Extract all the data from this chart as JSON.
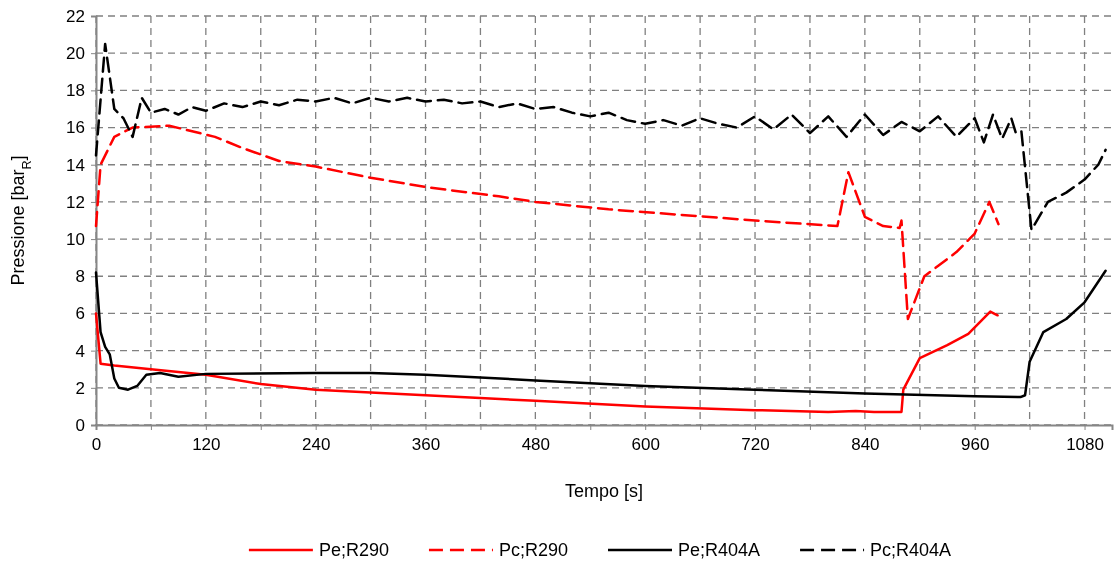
{
  "chart_data": {
    "type": "line",
    "xlabel": "Tempo [s]",
    "ylabel": "Pressione [bar$_{R}$]",
    "xlim": [
      0,
      1110
    ],
    "ylim": [
      0,
      22
    ],
    "xticks": [
      0,
      {
        "value": 60,
        "label": null
      },
      120,
      {
        "value": 180,
        "label": null
      },
      240,
      {
        "value": 300,
        "label": null
      },
      360,
      {
        "value": 420,
        "label": null
      },
      480,
      {
        "value": 540,
        "label": null
      },
      600,
      {
        "value": 660,
        "label": null
      },
      720,
      {
        "value": 780,
        "label": null
      },
      840,
      {
        "value": 900,
        "label": null
      },
      960,
      {
        "value": 1020,
        "label": null
      },
      1080
    ],
    "yticks": [
      0,
      2,
      4,
      6,
      8,
      10,
      12,
      14,
      16,
      18,
      20,
      22
    ],
    "grid": true,
    "legend": "bottom",
    "marker": "none",
    "series": [
      {
        "name": "Pe;R290",
        "color": "#ff0000",
        "line_style": "solid",
        "x": [
          0,
          5,
          20,
          60,
          120,
          180,
          240,
          360,
          480,
          600,
          720,
          800,
          830,
          850,
          880,
          882,
          900,
          930,
          953,
          977,
          985
        ],
        "values": [
          6,
          3.3,
          3.2,
          3.0,
          2.7,
          2.2,
          1.9,
          1.6,
          1.3,
          1.0,
          0.8,
          0.7,
          0.75,
          0.7,
          0.7,
          1.9,
          3.6,
          4.3,
          4.9,
          6.1,
          5.9
        ]
      },
      {
        "name": "Pc;R290",
        "color": "#ff0000",
        "line_style": "dashed",
        "x": [
          0,
          5,
          20,
          40,
          80,
          130,
          160,
          200,
          240,
          300,
          360,
          440,
          480,
          560,
          640,
          720,
          810,
          822,
          840,
          860,
          878,
          880,
          887,
          905,
          940,
          960,
          976,
          986
        ],
        "values": [
          10.7,
          14,
          15.5,
          16,
          16.1,
          15.5,
          14.9,
          14.2,
          13.9,
          13.3,
          12.8,
          12.3,
          12,
          11.6,
          11.3,
          11,
          10.7,
          13.6,
          11.2,
          10.7,
          10.6,
          11,
          5.7,
          8,
          9.3,
          10.3,
          12,
          10.8
        ]
      },
      {
        "name": "Pe;R404A",
        "color": "#000000",
        "line_style": "solid",
        "x": [
          0,
          5,
          10,
          15,
          20,
          25,
          35,
          45,
          55,
          70,
          90,
          120,
          240,
          300,
          360,
          480,
          600,
          720,
          840,
          960,
          1010,
          1015,
          1020,
          1035,
          1060,
          1080,
          1103
        ],
        "values": [
          8.2,
          5,
          4.2,
          3.8,
          2.5,
          2.0,
          1.9,
          2.1,
          2.7,
          2.8,
          2.6,
          2.75,
          2.8,
          2.8,
          2.7,
          2.4,
          2.1,
          1.9,
          1.7,
          1.55,
          1.5,
          1.6,
          3.4,
          5,
          5.7,
          6.6,
          8.3
        ]
      },
      {
        "name": "Pc;R404A",
        "color": "#000000",
        "line_style": "dashed",
        "x": [
          0,
          10,
          20,
          30,
          40,
          50,
          60,
          75,
          90,
          105,
          120,
          140,
          160,
          180,
          200,
          220,
          240,
          260,
          280,
          300,
          320,
          340,
          360,
          380,
          400,
          420,
          440,
          460,
          480,
          500,
          520,
          540,
          560,
          580,
          600,
          620,
          640,
          660,
          680,
          700,
          720,
          740,
          760,
          780,
          800,
          820,
          840,
          860,
          880,
          900,
          920,
          940,
          960,
          970,
          980,
          990,
          1000,
          1005,
          1011,
          1022,
          1040,
          1060,
          1080,
          1095,
          1103
        ],
        "values": [
          14.5,
          20.5,
          17,
          16.5,
          15.5,
          17.6,
          16.8,
          17.0,
          16.7,
          17.1,
          16.9,
          17.3,
          17.1,
          17.4,
          17.2,
          17.5,
          17.4,
          17.6,
          17.3,
          17.6,
          17.4,
          17.6,
          17.4,
          17.5,
          17.3,
          17.4,
          17.1,
          17.3,
          17,
          17.1,
          16.8,
          16.6,
          16.8,
          16.4,
          16.2,
          16.4,
          16.1,
          16.5,
          16.2,
          16.0,
          16.6,
          15.9,
          16.7,
          15.7,
          16.6,
          15.5,
          16.7,
          15.6,
          16.3,
          15.8,
          16.6,
          15.5,
          16.5,
          15.2,
          16.7,
          15.4,
          16.5,
          15.7,
          15.8,
          10.5,
          12,
          12.5,
          13.2,
          14,
          14.8
        ]
      }
    ]
  }
}
